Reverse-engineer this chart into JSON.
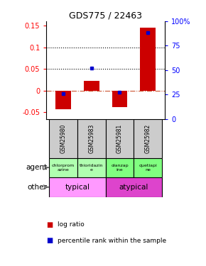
{
  "title": "GDS775 / 22463",
  "samples": [
    "GSM25980",
    "GSM25983",
    "GSM25981",
    "GSM25982"
  ],
  "log_ratios": [
    -0.043,
    0.022,
    -0.038,
    0.145
  ],
  "percentile_ranks": [
    26,
    52,
    27,
    88
  ],
  "ylim_left": [
    -0.065,
    0.16
  ],
  "ylim_right": [
    0,
    100
  ],
  "yticks_left": [
    -0.05,
    0.0,
    0.05,
    0.1,
    0.15
  ],
  "yticks_right": [
    0,
    25,
    50,
    75,
    100
  ],
  "ytick_labels_left": [
    "-0.05",
    "0",
    "0.05",
    "0.1",
    "0.15"
  ],
  "ytick_labels_right": [
    "0",
    "25",
    "50",
    "75",
    "100%"
  ],
  "hlines": [
    0.05,
    0.1
  ],
  "zero_line": 0.0,
  "agent_labels": [
    "chlorprom\nazine",
    "thioridazin\ne",
    "olanzap\nine",
    "quetiapi\nne"
  ],
  "agent_colors_typical": "#b0ffb0",
  "agent_colors_atypical": "#80ff80",
  "other_label_typical": "typical",
  "other_label_atypical": "atypical",
  "other_color_typical": "#ff99ff",
  "other_color_atypical": "#dd44cc",
  "bar_color": "#cc0000",
  "dot_color": "#0000cc",
  "bar_width": 0.55,
  "gsm_bg": "#cccccc",
  "background_color": "#ffffff"
}
